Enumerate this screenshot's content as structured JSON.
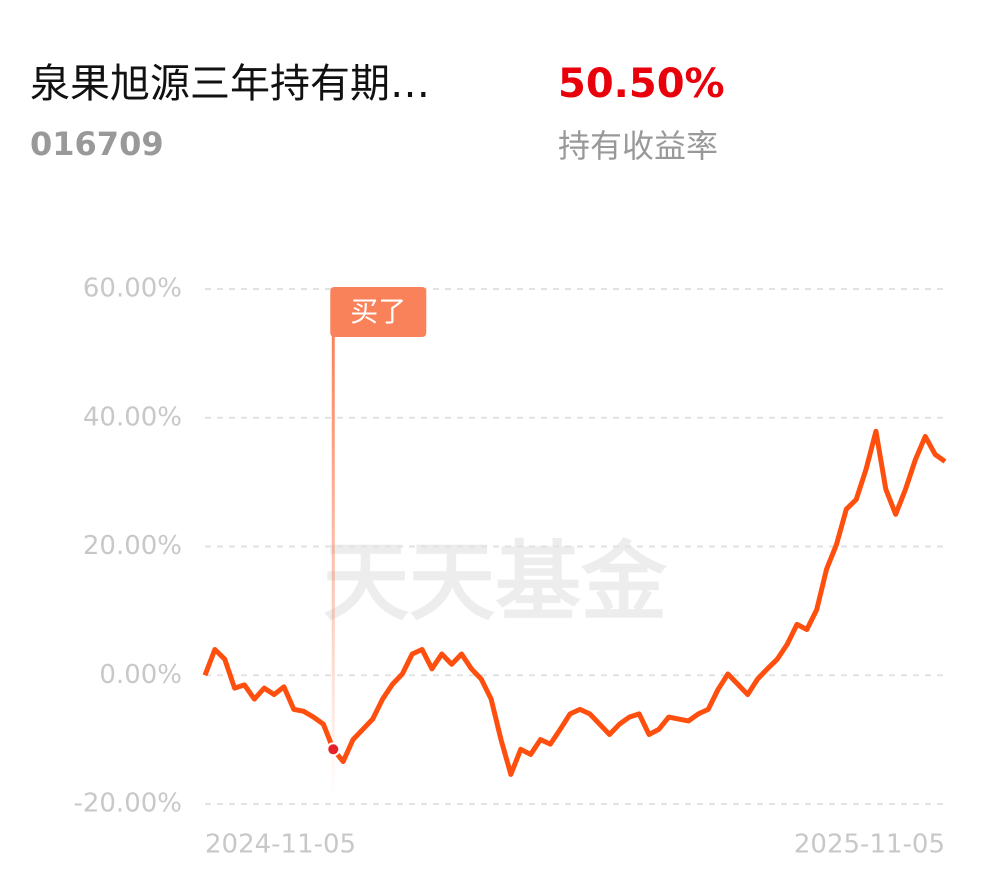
{
  "header": {
    "fund_name": "泉果旭源三年持有期…",
    "fund_code": "016709",
    "return_value": "50.50%",
    "return_label": "持有收益率"
  },
  "chart_data": {
    "type": "line",
    "watermark": "天天基金",
    "categories": [
      "2024-11-05",
      null,
      null,
      null,
      null,
      null,
      null,
      null,
      null,
      null,
      null,
      null,
      null,
      null,
      null,
      null,
      null,
      null,
      null,
      null,
      null,
      null,
      null,
      null,
      null,
      null,
      null,
      null,
      null,
      null,
      null,
      null,
      null,
      null,
      null,
      null,
      null,
      null,
      null,
      null,
      null,
      null,
      null,
      null,
      null,
      null,
      null,
      null,
      null,
      null,
      null,
      null,
      null,
      null,
      null,
      null,
      null,
      null,
      null,
      null,
      null,
      null,
      null,
      null,
      null,
      null,
      null,
      null,
      null,
      null,
      null,
      null,
      null,
      null,
      null,
      "2025-11-05"
    ],
    "series": [
      {
        "color": "#ff4f0f",
        "values": [
          0,
          4,
          2.5,
          -2,
          -1.5,
          -3.7,
          -2,
          -3,
          -1.8,
          -5.3,
          -5.6,
          -6.5,
          -7.6,
          -11.5,
          -13.4,
          -10,
          -8.4,
          -6.8,
          -3.7,
          -1.4,
          0.2,
          3.3,
          4,
          1,
          3.3,
          1.7,
          3.3,
          1,
          -0.6,
          -3.7,
          -10,
          -15.4,
          -11.5,
          -12.3,
          -10,
          -10.7,
          -8.4,
          -6,
          -5.3,
          -6,
          -7.6,
          -9.2,
          -7.6,
          -6.5,
          -6,
          -9.2,
          -8.4,
          -6.5,
          -6.8,
          -7.1,
          -6,
          -5.3,
          -2.2,
          0.2,
          -1.4,
          -3,
          -0.6,
          1,
          2.5,
          4.8,
          7.9,
          7.1,
          10.2,
          16.5,
          20.3,
          25.8,
          27.3,
          32,
          37.9,
          28.9,
          25,
          28.9,
          33.5,
          37.1,
          34.3,
          33.2
        ]
      }
    ],
    "buy_point": {
      "label": "买了",
      "value": -11.5,
      "color": "#f9825a"
    },
    "ylim": [
      -20,
      60
    ],
    "yticks": [
      {
        "value": -20,
        "label": "-20.00%"
      },
      {
        "value": 0,
        "label": "0.00%"
      },
      {
        "value": 20,
        "label": "20.00%"
      },
      {
        "value": 40,
        "label": "40.00%"
      },
      {
        "value": 60,
        "label": "60.00%"
      }
    ],
    "grid": true
  }
}
